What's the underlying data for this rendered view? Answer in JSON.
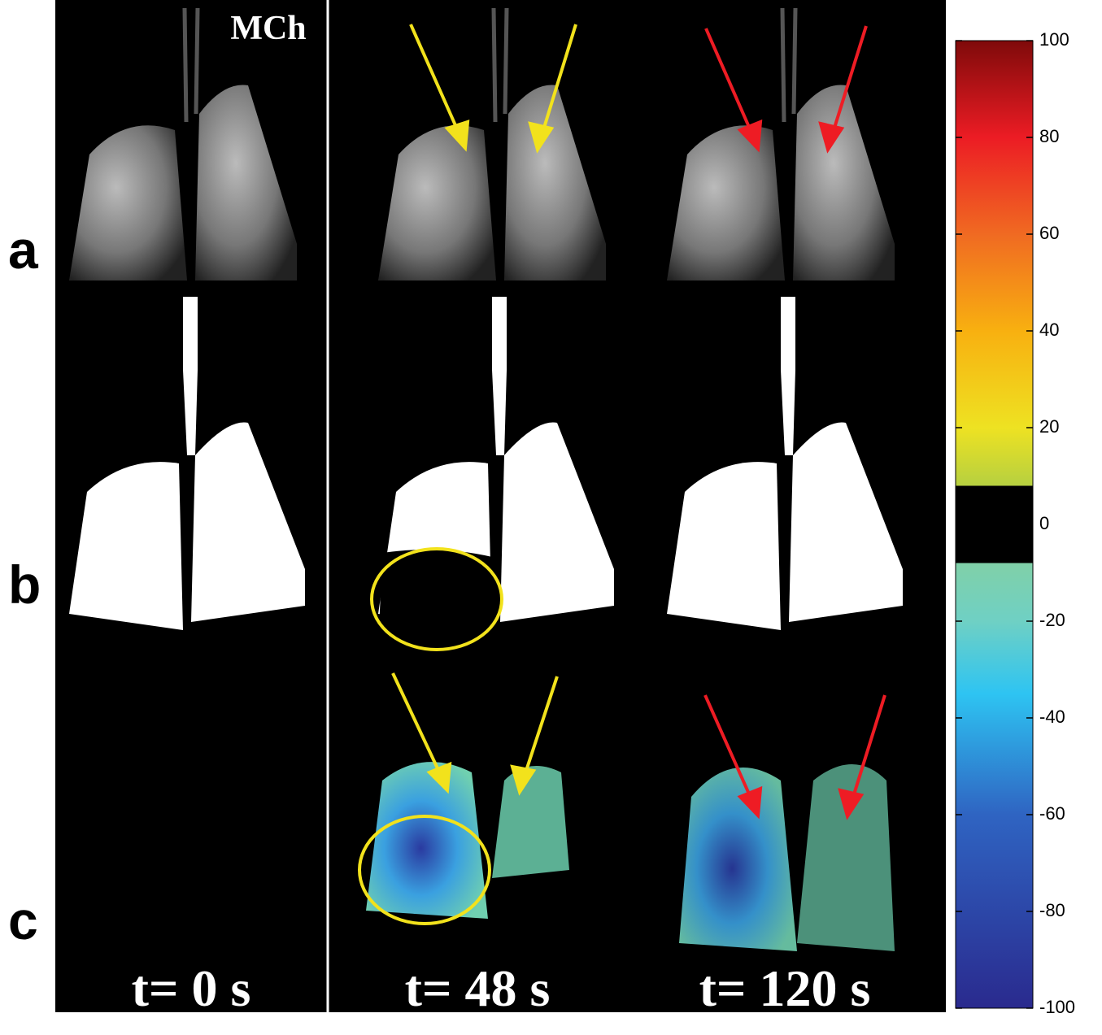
{
  "figure": {
    "panel_label": "MCh",
    "row_labels": [
      "a",
      "b",
      "c"
    ],
    "time_labels": [
      "t= 0 s",
      "t= 48 s",
      "t= 120 s"
    ],
    "colorbar": {
      "lim": [
        -100,
        100
      ],
      "ticks": [
        100,
        80,
        60,
        40,
        20,
        0,
        -20,
        -40,
        -60,
        -80,
        -100
      ]
    }
  }
}
